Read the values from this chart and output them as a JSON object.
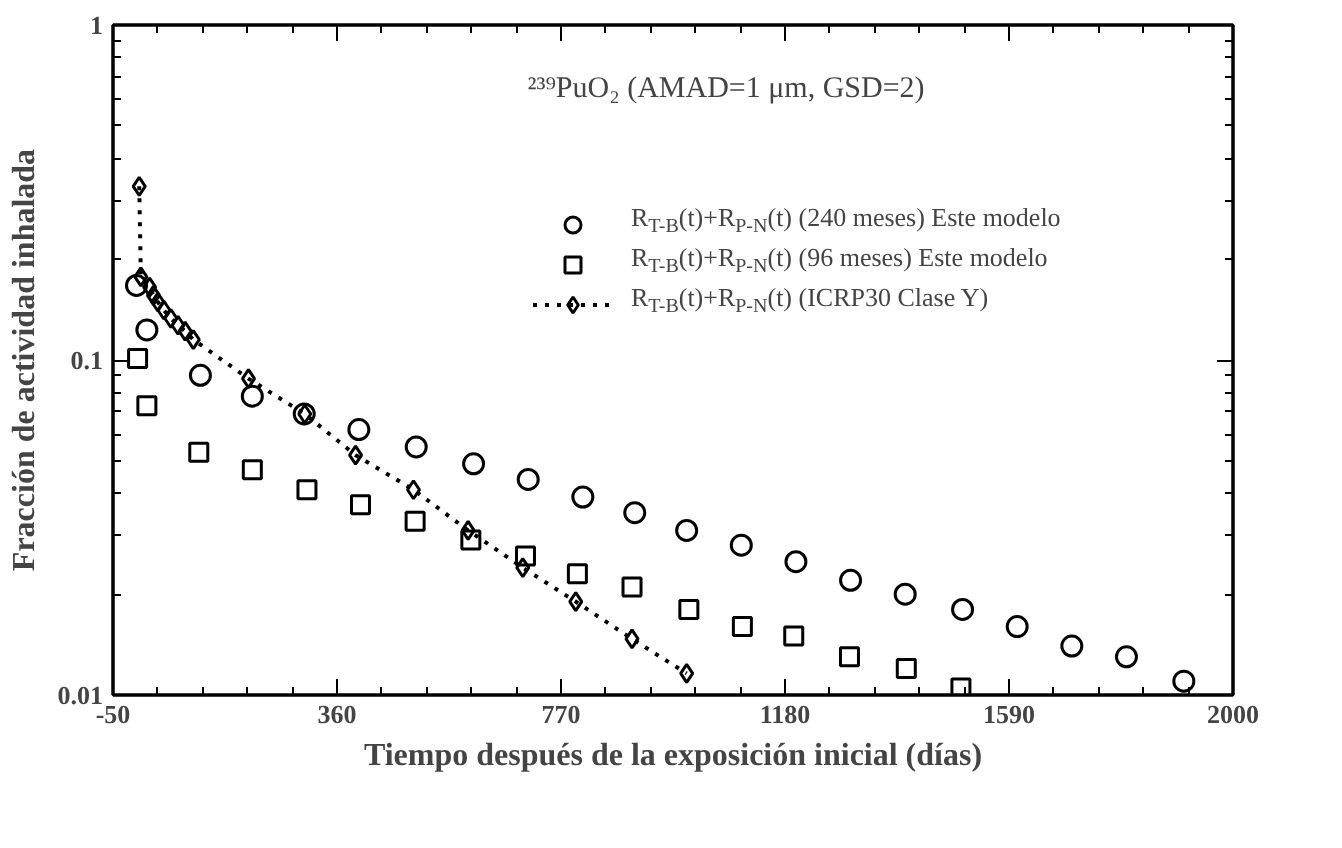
{
  "chart_data": {
    "type": "scatter",
    "xlabel": "Tiempo después de la exposición inicial (días)",
    "ylabel": "Fracción de actividad inhalada",
    "annotations": [
      "²³⁹PuO₂ (AMAD=1 μm, GSD=2)"
    ],
    "log": "y",
    "grid": false,
    "legend": "top right",
    "xlim": [
      -50,
      2000
    ],
    "ylim": [
      0.01,
      1
    ],
    "xticks": [
      -50,
      {
        "value": 32,
        "label": null
      },
      {
        "value": 114,
        "label": null
      },
      {
        "value": 196,
        "label": null
      },
      {
        "value": 278,
        "label": null
      },
      360,
      {
        "value": 442,
        "label": null
      },
      {
        "value": 524,
        "label": null
      },
      {
        "value": 606,
        "label": null
      },
      {
        "value": 688,
        "label": null
      },
      770,
      {
        "value": 852,
        "label": null
      },
      {
        "value": 934,
        "label": null
      },
      {
        "value": 1016,
        "label": null
      },
      {
        "value": 1098,
        "label": null
      },
      1180,
      {
        "value": 1262,
        "label": null
      },
      {
        "value": 1344,
        "label": null
      },
      {
        "value": 1426,
        "label": null
      },
      {
        "value": 1508,
        "label": null
      },
      1590,
      {
        "value": 1672,
        "label": null
      },
      {
        "value": 1754,
        "label": null
      },
      {
        "value": 1836,
        "label": null
      },
      {
        "value": 1918,
        "label": null
      },
      2000
    ],
    "yticks": [
      {
        "value": 0.01,
        "label": "0.01"
      },
      {
        "value": 0.02,
        "label": null
      },
      {
        "value": 0.03,
        "label": null
      },
      {
        "value": 0.04,
        "label": null
      },
      {
        "value": 0.05,
        "label": null
      },
      {
        "value": 0.06,
        "label": null
      },
      {
        "value": 0.07,
        "label": null
      },
      {
        "value": 0.08,
        "label": null
      },
      {
        "value": 0.09,
        "label": null
      },
      {
        "value": 0.1,
        "label": "0.1"
      },
      {
        "value": 0.2,
        "label": null
      },
      {
        "value": 0.3,
        "label": null
      },
      {
        "value": 0.4,
        "label": null
      },
      {
        "value": 0.5,
        "label": null
      },
      {
        "value": 0.6,
        "label": null
      },
      {
        "value": 0.7,
        "label": null
      },
      {
        "value": 0.8,
        "label": null
      },
      {
        "value": 0.9,
        "label": null
      },
      1
    ],
    "series": [
      {
        "name": "R$_{T-B}$(t)+R$_{P-N}$(t) (240 meses) Este modelo",
        "color": "#000000",
        "marker": "circle",
        "x": [
          -7,
          12,
          110,
          205,
          300,
          400,
          505,
          610,
          710,
          810,
          905,
          1000,
          1100,
          1200,
          1300,
          1400,
          1505,
          1605,
          1705,
          1805,
          1910
        ],
        "values": [
          0.167,
          0.123,
          0.09,
          0.078,
          0.069,
          0.062,
          0.055,
          0.049,
          0.044,
          0.039,
          0.035,
          0.031,
          0.028,
          0.025,
          0.022,
          0.02,
          0.018,
          0.016,
          0.014,
          0.013,
          0.011
        ]
      },
      {
        "name": "R$_{T-B}$(t)+R$_{P-N}$(t) (96 meses) Este modelo",
        "color": "#000000",
        "marker": "square",
        "x": [
          -5,
          12,
          107,
          205,
          305,
          403,
          503,
          605,
          705,
          800,
          900,
          1004,
          1102,
          1196,
          1298,
          1402,
          1502
        ],
        "values": [
          0.101,
          0.073,
          0.053,
          0.047,
          0.041,
          0.037,
          0.033,
          0.029,
          0.026,
          0.023,
          0.021,
          0.018,
          0.016,
          0.015,
          0.013,
          0.012,
          0.0105
        ]
      },
      {
        "name": "R$_{T-B}$(t)+R$_{P-N}$(t) (ICRP30 Clase Y)",
        "type": "line",
        "line_style": "dotted",
        "color": "#000000",
        "marker": "diamond",
        "x": [
          -2,
          1,
          17,
          24,
          32,
          43,
          56,
          69,
          82,
          97,
          198,
          301,
          394,
          500,
          600,
          700,
          797,
          900,
          1000
        ],
        "values": [
          0.33,
          0.177,
          0.165,
          0.156,
          0.149,
          0.141,
          0.133,
          0.127,
          0.122,
          0.115,
          0.088,
          0.069,
          0.052,
          0.041,
          0.031,
          0.024,
          0.019,
          0.0147,
          0.0116
        ]
      }
    ]
  }
}
